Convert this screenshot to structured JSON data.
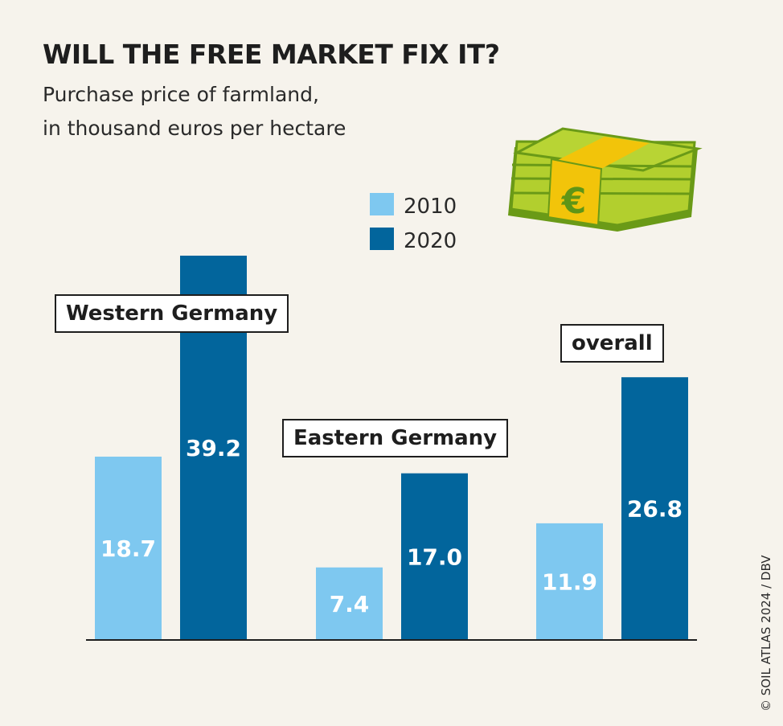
{
  "title": "WILL THE FREE MARKET FIX IT?",
  "subtitle_line1": "Purchase price of farmland,",
  "subtitle_line2": "in thousand euros per hectare",
  "credit": "© SOIL ATLAS 2024 / DBV",
  "money_icon": "euro-banknote-stack-icon",
  "currency_symbol": "€",
  "colors": {
    "c2010": "#7ec8f0",
    "c2020": "#02659c",
    "background": "#f6f3ec"
  },
  "chart_data": {
    "type": "bar",
    "categories": [
      "Western Germany",
      "Eastern Germany",
      "overall"
    ],
    "series": [
      {
        "name": "2010",
        "values": [
          18.7,
          7.4,
          11.9
        ],
        "labels": [
          "18.7",
          "7.4",
          "11.9"
        ]
      },
      {
        "name": "2020",
        "values": [
          39.2,
          17.0,
          26.8
        ],
        "labels": [
          "39.2",
          "17.0",
          "26.8"
        ]
      }
    ],
    "ylim": [
      0,
      39.2
    ],
    "grid": false,
    "legend_position": "top-center"
  }
}
